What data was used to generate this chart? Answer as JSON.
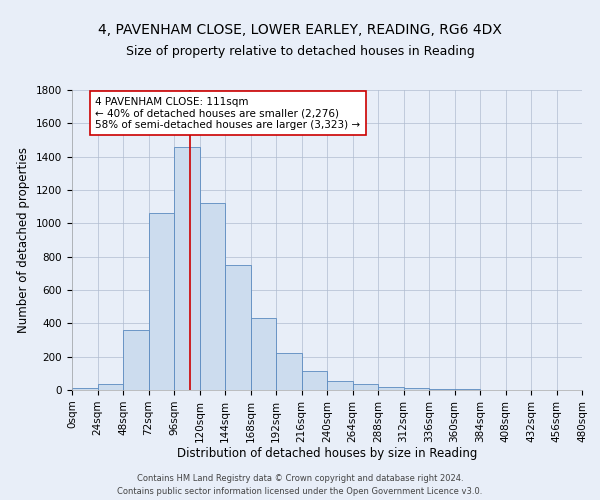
{
  "title1": "4, PAVENHAM CLOSE, LOWER EARLEY, READING, RG6 4DX",
  "title2": "Size of property relative to detached houses in Reading",
  "xlabel": "Distribution of detached houses by size in Reading",
  "ylabel": "Number of detached properties",
  "bin_edges": [
    0,
    24,
    48,
    72,
    96,
    120,
    144,
    168,
    192,
    216,
    240,
    264,
    288,
    312,
    336,
    360,
    384,
    408,
    432,
    456,
    480
  ],
  "counts": [
    10,
    35,
    360,
    1060,
    1460,
    1120,
    750,
    435,
    220,
    115,
    55,
    35,
    20,
    12,
    8,
    5,
    3,
    2,
    1,
    1
  ],
  "bar_color": "#ccdcee",
  "bar_edge_color": "#5a8abf",
  "property_size": 111,
  "vline_color": "#cc0000",
  "annotation_text": "4 PAVENHAM CLOSE: 111sqm\n← 40% of detached houses are smaller (2,276)\n58% of semi-detached houses are larger (3,323) →",
  "annotation_box_color": "#ffffff",
  "annotation_box_edge": "#cc0000",
  "footer_line1": "Contains HM Land Registry data © Crown copyright and database right 2024.",
  "footer_line2": "Contains public sector information licensed under the Open Government Licence v3.0.",
  "bg_color": "#e8eef8",
  "grid_color": "#b0bcd0",
  "ylim": [
    0,
    1800
  ],
  "title1_fontsize": 10,
  "title2_fontsize": 9,
  "axis_fontsize": 8.5,
  "tick_fontsize": 7.5,
  "footer_fontsize": 6.0
}
